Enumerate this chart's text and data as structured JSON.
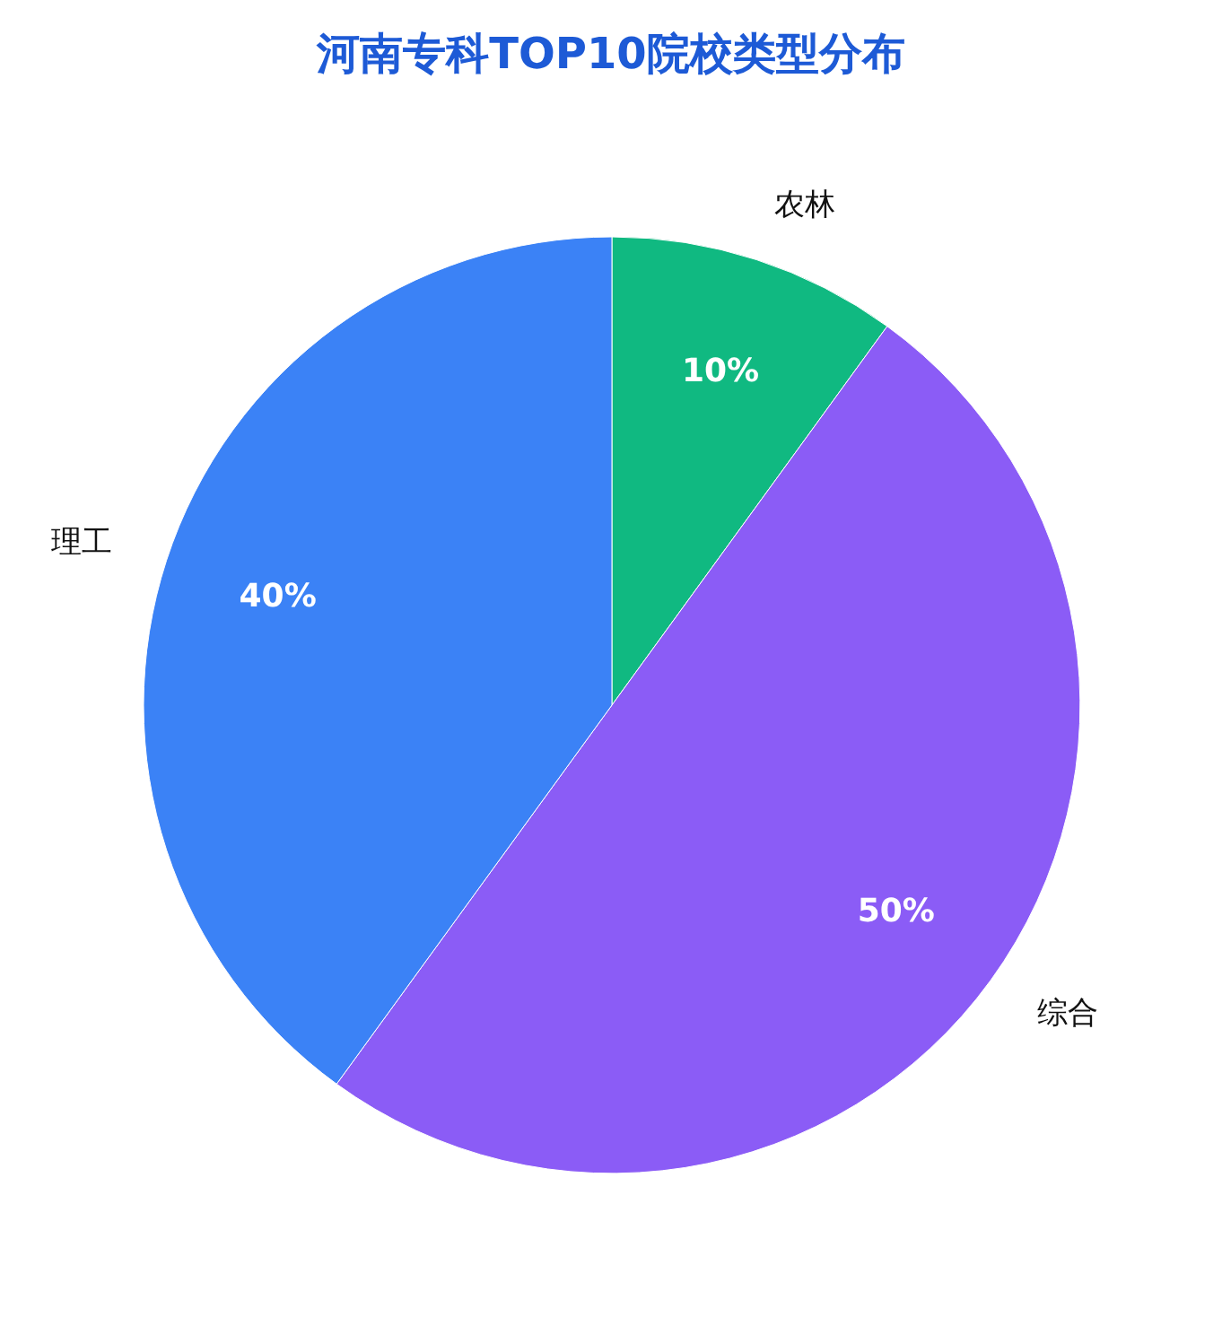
{
  "chart_data": {
    "type": "pie",
    "title": "河南专科TOP10院校类型分布",
    "categories": [
      "农林",
      "综合",
      "理工"
    ],
    "values": [
      10,
      50,
      40
    ],
    "colors": [
      "#10b981",
      "#8b5cf6",
      "#3b82f6"
    ],
    "value_labels": [
      "10%",
      "50%",
      "40%"
    ]
  }
}
